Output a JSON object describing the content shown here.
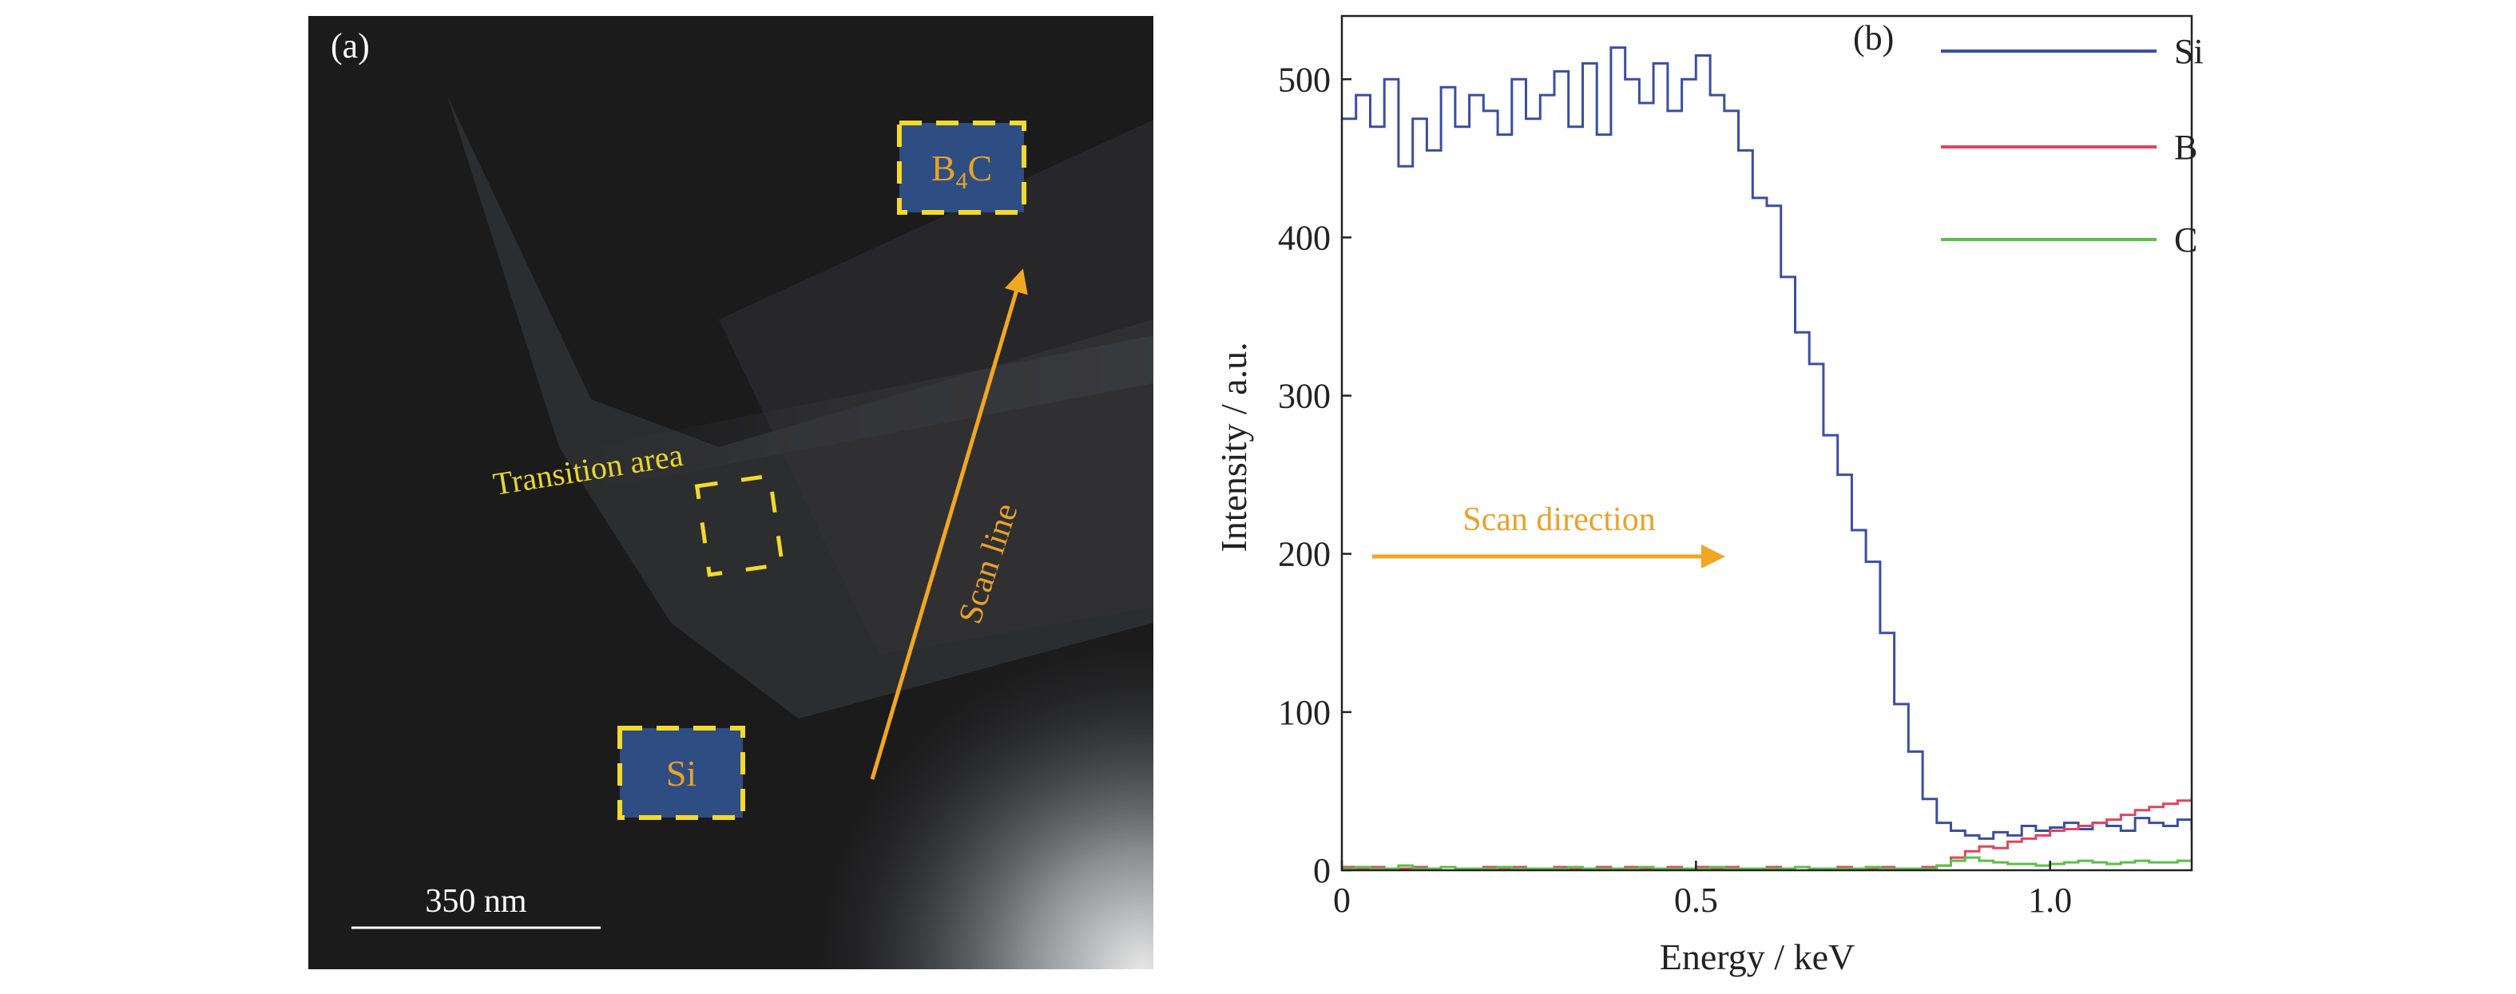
{
  "panel_a": {
    "label": "(a)",
    "regions": {
      "b4c_label": "B",
      "b4c_sub": "4",
      "b4c_end": "C",
      "si_label": "Si"
    },
    "transition_label": "Transition area",
    "scan_line_label": "Scan line",
    "scale_bar_label": "350 nm",
    "colors": {
      "box_fill": "#2e4d82",
      "box_dash": "#f2d92a",
      "arrow": "#f0a722",
      "text_yellow": "#e8d630"
    }
  },
  "chart_data": {
    "type": "line",
    "panel_label": "(b)",
    "xlabel": "Energy / keV",
    "ylabel": "Intensity / a.u.",
    "xlim": [
      0,
      1.2
    ],
    "ylim": [
      0,
      540
    ],
    "xticks": [
      0,
      0.5,
      1.0
    ],
    "xtick_labels": [
      "0",
      "0.5",
      "1.0"
    ],
    "yticks": [
      0,
      100,
      200,
      300,
      400,
      500
    ],
    "ytick_labels": [
      "0",
      "100",
      "200",
      "300",
      "400",
      "500"
    ],
    "grid": false,
    "legend_position": "top-right",
    "annotation": "Scan direction",
    "x_step": 0.02,
    "series": [
      {
        "name": "Si",
        "color": "#3a4ea3",
        "values": [
          475,
          490,
          470,
          500,
          445,
          475,
          455,
          495,
          470,
          490,
          480,
          465,
          500,
          475,
          490,
          505,
          470,
          510,
          465,
          520,
          500,
          485,
          510,
          480,
          500,
          515,
          490,
          480,
          455,
          425,
          420,
          375,
          340,
          320,
          275,
          250,
          215,
          195,
          150,
          105,
          75,
          45,
          30,
          25,
          22,
          20,
          24,
          22,
          28,
          25,
          27,
          30,
          26,
          30,
          28,
          25,
          33,
          30,
          28,
          32,
          25
        ]
      },
      {
        "name": "B",
        "color": "#e0455e",
        "values": [
          2,
          1,
          2,
          1,
          1,
          2,
          1,
          2,
          1,
          1,
          2,
          1,
          2,
          1,
          1,
          2,
          1,
          1,
          2,
          1,
          2,
          1,
          1,
          2,
          1,
          2,
          1,
          2,
          1,
          1,
          2,
          1,
          2,
          1,
          1,
          2,
          1,
          1,
          2,
          1,
          1,
          2,
          3,
          8,
          12,
          15,
          14,
          18,
          20,
          22,
          25,
          26,
          28,
          30,
          32,
          35,
          38,
          40,
          42,
          44,
          46
        ]
      },
      {
        "name": "C",
        "color": "#5cbf4a",
        "values": [
          1,
          2,
          1,
          1,
          3,
          1,
          1,
          2,
          1,
          1,
          1,
          2,
          1,
          1,
          1,
          1,
          2,
          1,
          1,
          1,
          1,
          2,
          1,
          1,
          1,
          1,
          2,
          1,
          1,
          1,
          1,
          1,
          2,
          1,
          1,
          1,
          1,
          2,
          1,
          1,
          1,
          1,
          3,
          6,
          8,
          6,
          5,
          4,
          4,
          3,
          4,
          5,
          6,
          5,
          4,
          5,
          6,
          5,
          5,
          6,
          5
        ]
      }
    ]
  }
}
